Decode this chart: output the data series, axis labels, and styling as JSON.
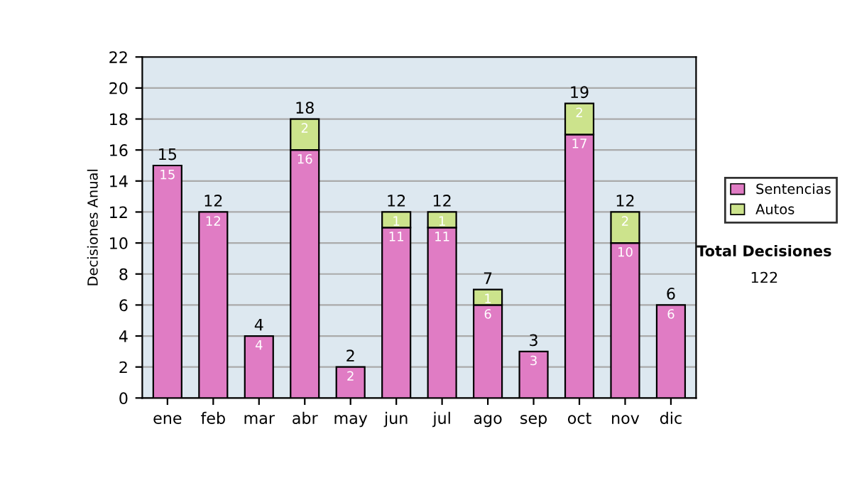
{
  "chart_data": {
    "type": "bar",
    "stacked": true,
    "ylabel": "Decisiones Anual",
    "categories": [
      "ene",
      "feb",
      "mar",
      "abr",
      "may",
      "jun",
      "jul",
      "ago",
      "sep",
      "oct",
      "nov",
      "dic"
    ],
    "series": [
      {
        "name": "Sentencias",
        "color": "#e07cc4",
        "values": [
          15,
          12,
          4,
          16,
          2,
          11,
          11,
          6,
          3,
          17,
          10,
          6
        ],
        "value_labels": [
          "15",
          "12",
          "4",
          "16",
          "2",
          "11",
          "11",
          "6",
          "3",
          "17",
          "10",
          "6"
        ]
      },
      {
        "name": "Autos",
        "color": "#cce38c",
        "values": [
          null,
          null,
          null,
          2,
          null,
          1,
          1,
          1,
          null,
          2,
          2,
          null
        ],
        "value_labels": [
          null,
          null,
          null,
          "2",
          null,
          "1",
          "1",
          "1",
          null,
          "2",
          "2",
          null
        ]
      }
    ],
    "totals": [
      "15",
      "12",
      "4",
      "18",
      "2",
      "12",
      "12",
      "7",
      "3",
      "19",
      "12",
      "6"
    ],
    "ylim": [
      0,
      22
    ],
    "yticks": [
      0,
      2,
      4,
      6,
      8,
      10,
      12,
      14,
      16,
      18,
      20,
      22
    ],
    "grid": "y",
    "legend": "right",
    "annotations": [
      "Total Decisiones",
      "122"
    ]
  }
}
